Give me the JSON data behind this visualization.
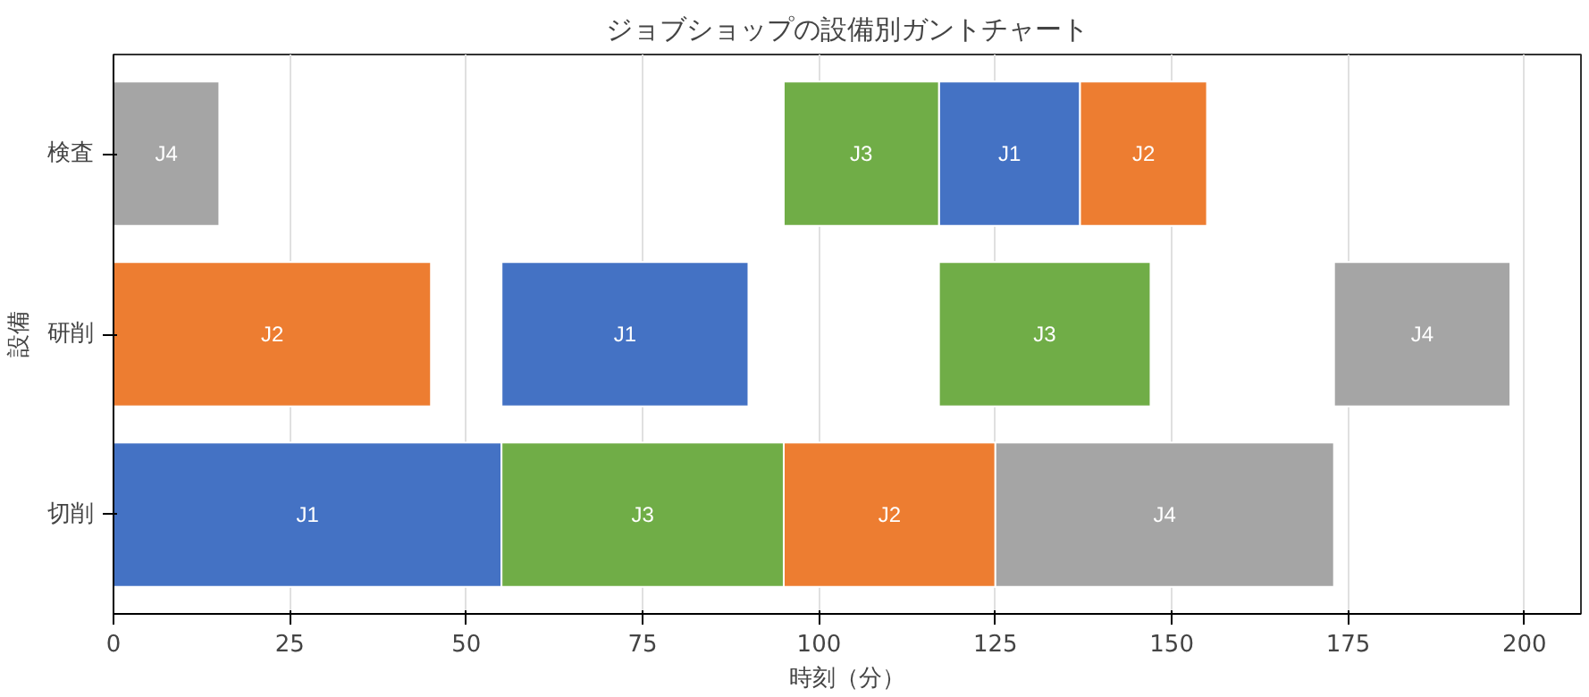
{
  "chart_data": {
    "type": "bar",
    "orientation": "horizontal",
    "title": "ジョブショップの設備別ガントチャート",
    "xlabel": "時刻（分）",
    "ylabel": "設備",
    "categories": [
      "検査",
      "研削",
      "切削"
    ],
    "series": [
      {
        "name": "J1",
        "color": "#4472c4",
        "values": [
          20,
          35,
          55
        ],
        "base": [
          117,
          55,
          0
        ]
      },
      {
        "name": "J2",
        "color": "#ed7d31",
        "values": [
          18,
          45,
          30
        ],
        "base": [
          137,
          0,
          95
        ]
      },
      {
        "name": "J3",
        "color": "#70ad47",
        "values": [
          22,
          30,
          40
        ],
        "base": [
          95,
          117,
          55
        ]
      },
      {
        "name": "J4",
        "color": "#a5a5a5",
        "values": [
          15,
          25,
          48
        ],
        "base": [
          0,
          173,
          125
        ]
      }
    ],
    "xlim": [
      0,
      208
    ],
    "xticks": [
      0,
      25,
      50,
      75,
      100,
      125,
      150,
      175,
      200
    ],
    "grid": "x"
  }
}
